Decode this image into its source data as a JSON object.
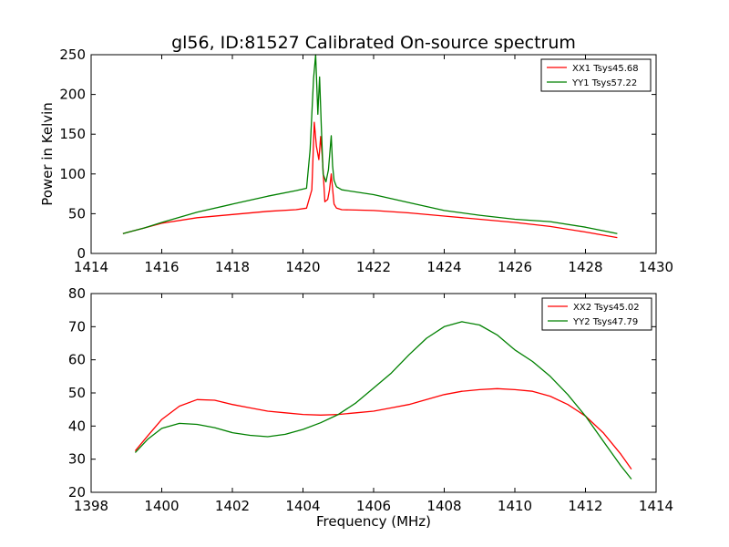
{
  "chart_data": [
    {
      "type": "line",
      "title": "gl56, ID:81527 Calibrated On-source spectrum",
      "xlabel": "",
      "ylabel": "Power in Kelvin",
      "xlim": [
        1414,
        1430
      ],
      "ylim": [
        0,
        250
      ],
      "xticks": [
        "1414",
        "1416",
        "1418",
        "1420",
        "1422",
        "1424",
        "1426",
        "1428",
        "1430"
      ],
      "yticks": [
        "0",
        "50",
        "100",
        "150",
        "200",
        "250"
      ],
      "legend_position": "top-right",
      "series": [
        {
          "name": "XX1 Tsys45.68",
          "color": "#ff0000",
          "x": [
            1414.9,
            1415.5,
            1416.0,
            1417.0,
            1418.0,
            1419.0,
            1419.8,
            1420.1,
            1420.25,
            1420.32,
            1420.38,
            1420.45,
            1420.5,
            1420.55,
            1420.62,
            1420.7,
            1420.75,
            1420.8,
            1420.83,
            1420.88,
            1420.95,
            1421.1,
            1422.0,
            1423.0,
            1424.0,
            1425.0,
            1426.0,
            1427.0,
            1428.0,
            1428.9
          ],
          "y": [
            25,
            32,
            38,
            45,
            49,
            53,
            55,
            57,
            80,
            165,
            135,
            118,
            147,
            120,
            65,
            68,
            80,
            100,
            85,
            62,
            57,
            55,
            54,
            51,
            47,
            43,
            39,
            34,
            27,
            20
          ]
        },
        {
          "name": "YY1 Tsys57.22",
          "color": "#008000",
          "x": [
            1414.9,
            1415.5,
            1416.0,
            1417.0,
            1418.0,
            1419.0,
            1419.8,
            1420.1,
            1420.2,
            1420.3,
            1420.36,
            1420.42,
            1420.47,
            1420.52,
            1420.57,
            1420.65,
            1420.72,
            1420.8,
            1420.84,
            1420.88,
            1420.95,
            1421.1,
            1422.0,
            1423.0,
            1424.0,
            1425.0,
            1426.0,
            1427.0,
            1428.0,
            1428.9
          ],
          "y": [
            25,
            32,
            39,
            52,
            62,
            72,
            79,
            82,
            130,
            220,
            250,
            175,
            222,
            160,
            100,
            90,
            105,
            148,
            110,
            92,
            84,
            80,
            74,
            64,
            54,
            48,
            43,
            40,
            33,
            25
          ]
        }
      ]
    },
    {
      "type": "line",
      "title": "",
      "xlabel": "Frequency (MHz)",
      "ylabel": "",
      "xlim": [
        1398,
        1414
      ],
      "ylim": [
        20,
        80
      ],
      "xticks": [
        "1398",
        "1400",
        "1402",
        "1404",
        "1406",
        "1408",
        "1410",
        "1412",
        "1414"
      ],
      "yticks": [
        "20",
        "30",
        "40",
        "50",
        "60",
        "70",
        "80"
      ],
      "legend_position": "top-right",
      "series": [
        {
          "name": "XX2 Tsys45.02",
          "color": "#ff0000",
          "x": [
            1399.25,
            1399.6,
            1400.0,
            1400.5,
            1401.0,
            1401.5,
            1402.0,
            1402.5,
            1403.0,
            1403.5,
            1404.0,
            1404.5,
            1405.0,
            1405.5,
            1406.0,
            1406.5,
            1407.0,
            1407.5,
            1408.0,
            1408.5,
            1409.0,
            1409.5,
            1410.0,
            1410.5,
            1411.0,
            1411.5,
            1412.0,
            1412.5,
            1413.0,
            1413.3
          ],
          "y": [
            32.5,
            37,
            42,
            46,
            48,
            47.8,
            46.5,
            45.5,
            44.5,
            44,
            43.5,
            43.3,
            43.5,
            44,
            44.5,
            45.5,
            46.5,
            48,
            49.5,
            50.5,
            51,
            51.3,
            51,
            50.5,
            49,
            46.5,
            43,
            38,
            31.5,
            27
          ]
        },
        {
          "name": "YY2 Tsys47.79",
          "color": "#008000",
          "x": [
            1399.25,
            1399.6,
            1400.0,
            1400.5,
            1401.0,
            1401.5,
            1402.0,
            1402.5,
            1403.0,
            1403.5,
            1404.0,
            1404.5,
            1405.0,
            1405.5,
            1406.0,
            1406.5,
            1407.0,
            1407.5,
            1408.0,
            1408.5,
            1409.0,
            1409.5,
            1410.0,
            1410.5,
            1411.0,
            1411.5,
            1412.0,
            1412.5,
            1413.0,
            1413.3
          ],
          "y": [
            32,
            36,
            39.3,
            40.8,
            40.5,
            39.5,
            38,
            37.2,
            36.8,
            37.5,
            39,
            41,
            43.5,
            47,
            51.5,
            56,
            61.5,
            66.5,
            70,
            71.5,
            70.5,
            67.5,
            63,
            59.5,
            55,
            49.5,
            43,
            35.5,
            28,
            24
          ]
        }
      ]
    }
  ]
}
